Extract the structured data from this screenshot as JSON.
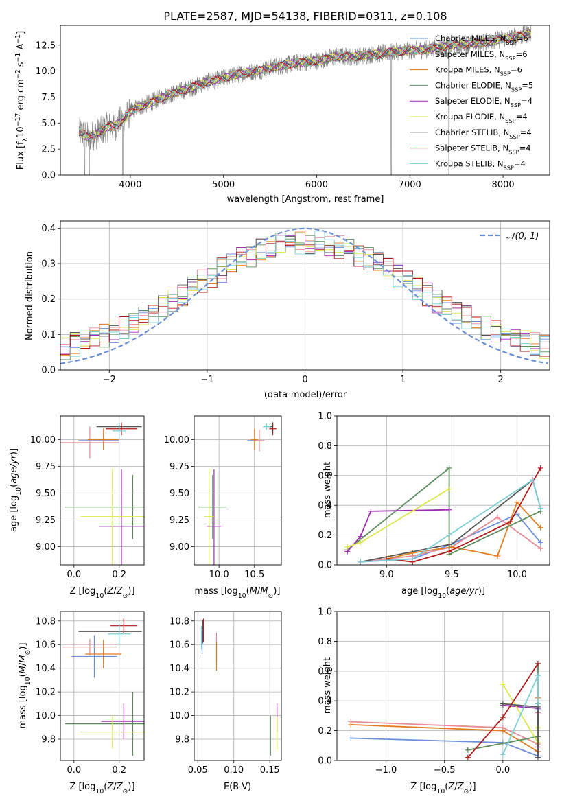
{
  "figure_title": "PLATE=2587, MJD=54138, FIBERID=0311, z=0.108",
  "colors": {
    "chabrier_miles": "#6a8fd8",
    "salpeter_miles": "#e88b96",
    "kroupa_miles": "#e07b20",
    "chabrier_elodie": "#5b8a5b",
    "salpeter_elodie": "#9b2fb0",
    "kroupa_elodie": "#dbe84a",
    "chabrier_stelib": "#555555",
    "salpeter_stelib": "#b01818",
    "kroupa_stelib": "#7ccfd6",
    "data_spectrum": "#808080",
    "grid": "#b0b0b0"
  },
  "chart_data": [
    {
      "id": "spectrum",
      "type": "line",
      "xlabel": "wavelength [Angstrom, rest frame]",
      "ylabel": "Flux [f",
      "ylabel_parts": [
        "Flux [f",
        "λ",
        "10",
        "−17",
        " erg cm",
        "−2",
        " s",
        "−1",
        " A",
        "−1",
        "]"
      ],
      "xlim": [
        3250,
        8500
      ],
      "ylim": [
        0,
        14.4
      ],
      "xticks": [
        4000,
        5000,
        6000,
        7000,
        8000
      ],
      "yticks": [
        0.0,
        2.5,
        5.0,
        7.5,
        10.0,
        12.5
      ],
      "grid": false,
      "legend_position": "upper-right",
      "legend": [
        {
          "label": "Chabrier MILES, N",
          "sub": "SSP",
          "suffix": "=6",
          "color_key": "chabrier_miles"
        },
        {
          "label": "Salpeter MILES, N",
          "sub": "SSP",
          "suffix": "=6",
          "color_key": "salpeter_miles"
        },
        {
          "label": "Kroupa MILES, N",
          "sub": "SSP",
          "suffix": "=6",
          "color_key": "kroupa_miles"
        },
        {
          "label": "Chabrier ELODIE, N",
          "sub": "SSP",
          "suffix": "=5",
          "color_key": "chabrier_elodie"
        },
        {
          "label": "Salpeter ELODIE, N",
          "sub": "SSP",
          "suffix": "=4",
          "color_key": "salpeter_elodie"
        },
        {
          "label": "Kroupa ELODIE, N",
          "sub": "SSP",
          "suffix": "=4",
          "color_key": "kroupa_elodie"
        },
        {
          "label": "Chabrier STELIB, N",
          "sub": "SSP",
          "suffix": "=4",
          "color_key": "chabrier_stelib"
        },
        {
          "label": "Salpeter STELIB, N",
          "sub": "SSP",
          "suffix": "=4",
          "color_key": "salpeter_stelib"
        },
        {
          "label": "Kroupa STELIB, N",
          "sub": "SSP",
          "suffix": "=4",
          "color_key": "kroupa_stelib"
        }
      ],
      "continuum": [
        [
          3450,
          4.2
        ],
        [
          3550,
          3.6
        ],
        [
          3650,
          4.0
        ],
        [
          3750,
          4.6
        ],
        [
          3850,
          4.8
        ],
        [
          3950,
          5.6
        ],
        [
          4050,
          6.4
        ],
        [
          4200,
          6.9
        ],
        [
          4400,
          7.7
        ],
        [
          4600,
          8.2
        ],
        [
          4800,
          8.9
        ],
        [
          5000,
          9.3
        ],
        [
          5200,
          9.8
        ],
        [
          5400,
          10.1
        ],
        [
          5600,
          10.5
        ],
        [
          5800,
          10.8
        ],
        [
          6000,
          11.0
        ],
        [
          6200,
          11.4
        ],
        [
          6400,
          11.4
        ],
        [
          6600,
          11.6
        ],
        [
          6800,
          11.8
        ],
        [
          7000,
          12.0
        ],
        [
          7200,
          12.1
        ],
        [
          7400,
          12.4
        ],
        [
          7600,
          12.6
        ],
        [
          7800,
          12.8
        ],
        [
          8000,
          13.1
        ],
        [
          8200,
          13.4
        ],
        [
          8280,
          13.6
        ]
      ],
      "model_xrange": [
        3450,
        8300
      ],
      "data_dips": [
        [
          3510,
          0
        ],
        [
          3560,
          0
        ],
        [
          3920,
          0
        ],
        [
          6800,
          0
        ],
        [
          7420,
          0
        ]
      ]
    },
    {
      "id": "residual-histogram",
      "type": "step",
      "xlabel": "(data-model)/error",
      "ylabel": "Normed distribution",
      "xlim": [
        -2.5,
        2.5
      ],
      "ylim": [
        0,
        0.42
      ],
      "xticks": [
        -2,
        -1,
        0,
        1,
        2
      ],
      "yticks": [
        0.0,
        0.1,
        0.2,
        0.3,
        0.4
      ],
      "grid": true,
      "legend_position": "upper-right",
      "legend": [
        {
          "label": "𝒩(0, 1)",
          "color_key": "chabrier_miles",
          "style": "dashed"
        }
      ],
      "bin_width": 0.1,
      "gaussian": {
        "mean": 0,
        "sigma": 1
      }
    },
    {
      "id": "age-vs-Z-errorbars",
      "type": "errorbar",
      "xlabel": "Z [log",
      "xlabel_parts": [
        "Z [log",
        "10",
        "(Z/Z",
        "⊙",
        ")]"
      ],
      "ylabel_parts": [
        "age  [log",
        "10",
        "(age/yr)]"
      ],
      "xlim": [
        -0.06,
        0.31
      ],
      "ylim": [
        8.83,
        10.22
      ],
      "xticks": [
        0.0,
        0.2
      ],
      "yticks": [
        9.0,
        9.25,
        9.5,
        9.75,
        10.0
      ],
      "grid": true,
      "points": [
        {
          "color_key": "chabrier_miles",
          "x": 0.11,
          "xerr": 0.09,
          "y": 9.99,
          "yerr": 0.0
        },
        {
          "color_key": "salpeter_miles",
          "x": 0.07,
          "xerr": 0.13,
          "y": 9.97,
          "yerr": 0.15
        },
        {
          "color_key": "kroupa_miles",
          "x": 0.13,
          "xerr": 0.07,
          "y": 10.0,
          "yerr": 0.1
        },
        {
          "color_key": "chabrier_elodie",
          "x": 0.26,
          "xerr": 0.3,
          "y": 9.37,
          "yerr": 0.3
        },
        {
          "color_key": "salpeter_elodie",
          "x": 0.21,
          "xerr": 0.1,
          "y": 9.19,
          "yerr": 0.53
        },
        {
          "color_key": "kroupa_elodie",
          "x": 0.17,
          "xerr": 0.14,
          "y": 9.28,
          "yerr": 0.45
        },
        {
          "color_key": "chabrier_stelib",
          "x": 0.2,
          "xerr": 0.1,
          "y": 10.12,
          "yerr": 0.03
        },
        {
          "color_key": "salpeter_stelib",
          "x": 0.21,
          "xerr": 0.07,
          "y": 10.1,
          "yerr": 0.06
        },
        {
          "color_key": "kroupa_stelib",
          "x": 0.2,
          "xerr": 0.03,
          "y": 10.08,
          "yerr": 0.08
        }
      ]
    },
    {
      "id": "age-vs-mass-errorbars",
      "type": "errorbar",
      "xlabel_parts": [
        "mass [log",
        "10",
        "(M/M",
        "⊙",
        ")]"
      ],
      "xlim": [
        9.65,
        10.88
      ],
      "ylim": [
        8.83,
        10.22
      ],
      "xticks": [
        10.0,
        10.5
      ],
      "yticks": [
        9.0,
        9.25,
        9.5,
        9.75,
        10.0
      ],
      "grid": true,
      "points": [
        {
          "color_key": "chabrier_miles",
          "x": 10.5,
          "xerr": 0.1,
          "y": 9.99,
          "yerr": 0.0
        },
        {
          "color_key": "salpeter_miles",
          "x": 10.57,
          "xerr": 0.07,
          "y": 9.99,
          "yerr": 0.1
        },
        {
          "color_key": "kroupa_miles",
          "x": 10.5,
          "xerr": 0.05,
          "y": 10.0,
          "yerr": 0.1
        },
        {
          "color_key": "chabrier_elodie",
          "x": 9.91,
          "xerr": 0.2,
          "y": 9.37,
          "yerr": 0.3
        },
        {
          "color_key": "salpeter_elodie",
          "x": 9.93,
          "xerr": 0.1,
          "y": 9.19,
          "yerr": 0.53
        },
        {
          "color_key": "kroupa_elodie",
          "x": 9.86,
          "xerr": 0.07,
          "y": 9.28,
          "yerr": 0.45
        },
        {
          "color_key": "chabrier_stelib",
          "x": 10.72,
          "xerr": 0.03,
          "y": 10.12,
          "yerr": 0.03
        },
        {
          "color_key": "salpeter_stelib",
          "x": 10.76,
          "xerr": 0.05,
          "y": 10.1,
          "yerr": 0.06
        },
        {
          "color_key": "kroupa_stelib",
          "x": 10.67,
          "xerr": 0.05,
          "y": 10.12,
          "yerr": 0.03
        }
      ]
    },
    {
      "id": "mass-weight-vs-age",
      "type": "line",
      "xlabel_parts": [
        "age  [log",
        "10",
        "(age/yr)]"
      ],
      "ylabel": "mass weight",
      "xlim": [
        8.62,
        10.25
      ],
      "ylim": [
        0.0,
        1.0
      ],
      "xticks": [
        9.0,
        9.5,
        10.0
      ],
      "yticks": [
        0.0,
        0.2,
        0.4,
        0.6,
        0.8,
        1.0
      ],
      "grid": true,
      "series": [
        {
          "color_key": "chabrier_miles",
          "x": [
            8.8,
            9.2,
            9.5,
            10.0,
            10.18
          ],
          "y": [
            0.02,
            0.04,
            0.14,
            0.34,
            0.15
          ]
        },
        {
          "color_key": "salpeter_miles",
          "x": [
            8.8,
            9.2,
            9.5,
            9.85,
            10.18
          ],
          "y": [
            0.02,
            0.06,
            0.12,
            0.32,
            0.11
          ]
        },
        {
          "color_key": "kroupa_miles",
          "x": [
            9.0,
            9.2,
            9.5,
            9.85,
            10.0,
            10.18
          ],
          "y": [
            0.04,
            0.08,
            0.12,
            0.06,
            0.42,
            0.25
          ]
        },
        {
          "color_key": "chabrier_elodie",
          "x": [
            8.7,
            9.48,
            9.48,
            10.18
          ],
          "y": [
            0.1,
            0.65,
            0.07,
            0.36
          ]
        },
        {
          "color_key": "salpeter_elodie",
          "x": [
            8.7,
            8.8,
            8.88,
            9.48
          ],
          "y": [
            0.09,
            0.19,
            0.36,
            0.37
          ]
        },
        {
          "color_key": "kroupa_elodie",
          "x": [
            8.7,
            8.8,
            9.48
          ],
          "y": [
            0.12,
            0.15,
            0.51
          ]
        },
        {
          "color_key": "chabrier_stelib",
          "x": [
            8.8,
            9.5,
            10.12,
            10.18
          ],
          "y": [
            0.02,
            0.14,
            0.57,
            0.38
          ]
        },
        {
          "color_key": "salpeter_stelib",
          "x": [
            9.0,
            9.2,
            9.48,
            9.95,
            10.18
          ],
          "y": [
            0.04,
            0.02,
            0.09,
            0.29,
            0.65
          ]
        },
        {
          "color_key": "kroupa_stelib",
          "x": [
            8.8,
            9.2,
            10.12,
            10.18
          ],
          "y": [
            0.02,
            0.04,
            0.57,
            0.38
          ]
        }
      ]
    },
    {
      "id": "mass-vs-Z-errorbars",
      "type": "errorbar",
      "xlabel_parts": [
        "Z [log",
        "10",
        "(Z/Z",
        "⊙",
        ")]"
      ],
      "ylabel_parts": [
        "mass [log",
        "10",
        "(M/M",
        "⊙",
        ")]"
      ],
      "xlim": [
        -0.06,
        0.31
      ],
      "ylim": [
        9.62,
        10.88
      ],
      "xticks": [
        0.0,
        0.2
      ],
      "yticks": [
        9.8,
        10.0,
        10.2,
        10.4,
        10.6,
        10.8
      ],
      "grid": true,
      "points": [
        {
          "color_key": "chabrier_miles",
          "x": 0.09,
          "xerr": 0.1,
          "y": 10.5,
          "yerr": 0.18
        },
        {
          "color_key": "salpeter_miles",
          "x": 0.07,
          "xerr": 0.12,
          "y": 10.58,
          "yerr": 0.07
        },
        {
          "color_key": "kroupa_miles",
          "x": 0.13,
          "xerr": 0.08,
          "y": 10.52,
          "yerr": 0.12
        },
        {
          "color_key": "chabrier_elodie",
          "x": 0.26,
          "xerr": 0.3,
          "y": 9.93,
          "yerr": 0.27
        },
        {
          "color_key": "salpeter_elodie",
          "x": 0.22,
          "xerr": 0.1,
          "y": 9.95,
          "yerr": 0.15
        },
        {
          "color_key": "kroupa_elodie",
          "x": 0.17,
          "xerr": 0.14,
          "y": 9.86,
          "yerr": 0.14
        },
        {
          "color_key": "chabrier_stelib",
          "x": 0.16,
          "xerr": 0.14,
          "y": 10.71,
          "yerr": 0.0
        },
        {
          "color_key": "salpeter_stelib",
          "x": 0.22,
          "xerr": 0.06,
          "y": 10.76,
          "yerr": 0.06
        },
        {
          "color_key": "kroupa_stelib",
          "x": 0.2,
          "xerr": 0.05,
          "y": 10.69,
          "yerr": 0.09
        }
      ]
    },
    {
      "id": "mass-vs-ebv-errorbars",
      "type": "errorbar",
      "xlabel": "E(B-V)",
      "xlim": [
        0.045,
        0.166
      ],
      "ylim": [
        9.62,
        10.88
      ],
      "xticks": [
        0.05,
        0.1,
        0.15
      ],
      "yticks": [
        9.8,
        10.0,
        10.2,
        10.4,
        10.6,
        10.8
      ],
      "grid": true,
      "points": [
        {
          "color_key": "chabrier_miles",
          "x": 0.056,
          "xerr": 0.0,
          "y": 10.62,
          "yerr": 0.1
        },
        {
          "color_key": "salpeter_miles",
          "x": 0.076,
          "xerr": 0.0,
          "y": 10.58,
          "yerr": 0.12
        },
        {
          "color_key": "kroupa_miles",
          "x": 0.076,
          "xerr": 0.0,
          "y": 10.5,
          "yerr": 0.12
        },
        {
          "color_key": "chabrier_elodie",
          "x": 0.151,
          "xerr": 0.0,
          "y": 9.83,
          "yerr": 0.17
        },
        {
          "color_key": "salpeter_elodie",
          "x": 0.16,
          "xerr": 0.0,
          "y": 9.98,
          "yerr": 0.12
        },
        {
          "color_key": "kroupa_elodie",
          "x": 0.16,
          "xerr": 0.0,
          "y": 9.85,
          "yerr": 0.14
        },
        {
          "color_key": "chabrier_stelib",
          "x": 0.057,
          "xerr": 0.0,
          "y": 10.71,
          "yerr": 0.1
        },
        {
          "color_key": "salpeter_stelib",
          "x": 0.058,
          "xerr": 0.0,
          "y": 10.72,
          "yerr": 0.1
        },
        {
          "color_key": "kroupa_stelib",
          "x": 0.055,
          "xerr": 0.0,
          "y": 10.66,
          "yerr": 0.1
        }
      ]
    },
    {
      "id": "mass-weight-vs-Z",
      "type": "line",
      "xlabel_parts": [
        "Z [log",
        "10",
        "(Z/Z",
        "⊙",
        ")]"
      ],
      "ylabel": "mass weight",
      "xlim": [
        -1.42,
        0.4
      ],
      "ylim": [
        0.0,
        1.0
      ],
      "xticks": [
        -1.0,
        -0.5,
        0.0
      ],
      "yticks": [
        0.0,
        0.2,
        0.4,
        0.6,
        0.8,
        1.0
      ],
      "grid": true,
      "series": [
        {
          "color_key": "chabrier_miles",
          "x": [
            -1.3,
            0.0,
            0.3,
            0.3
          ],
          "y": [
            0.15,
            0.12,
            0.03,
            0.34
          ]
        },
        {
          "color_key": "salpeter_miles",
          "x": [
            -1.3,
            0.0,
            0.3,
            0.3
          ],
          "y": [
            0.26,
            0.22,
            0.11,
            0.32
          ]
        },
        {
          "color_key": "kroupa_miles",
          "x": [
            -1.3,
            0.0,
            0.3,
            0.3
          ],
          "y": [
            0.24,
            0.2,
            0.06,
            0.42
          ]
        },
        {
          "color_key": "chabrier_elodie",
          "x": [
            -0.3,
            0.3,
            0.3
          ],
          "y": [
            0.07,
            0.16,
            0.65
          ]
        },
        {
          "color_key": "salpeter_elodie",
          "x": [
            0.0,
            0.3,
            0.3
          ],
          "y": [
            0.37,
            0.35,
            0.09
          ]
        },
        {
          "color_key": "kroupa_elodie",
          "x": [
            0.0,
            0.3,
            0.3
          ],
          "y": [
            0.51,
            0.12,
            0.22
          ]
        },
        {
          "color_key": "chabrier_stelib",
          "x": [
            0.0,
            0.3,
            0.3
          ],
          "y": [
            0.38,
            0.36,
            0.02
          ]
        },
        {
          "color_key": "salpeter_stelib",
          "x": [
            -0.3,
            0.0,
            0.3
          ],
          "y": [
            0.02,
            0.29,
            0.65
          ]
        },
        {
          "color_key": "kroupa_stelib",
          "x": [
            0.0,
            0.3,
            0.3
          ],
          "y": [
            0.04,
            0.57,
            0.38
          ]
        }
      ]
    }
  ]
}
